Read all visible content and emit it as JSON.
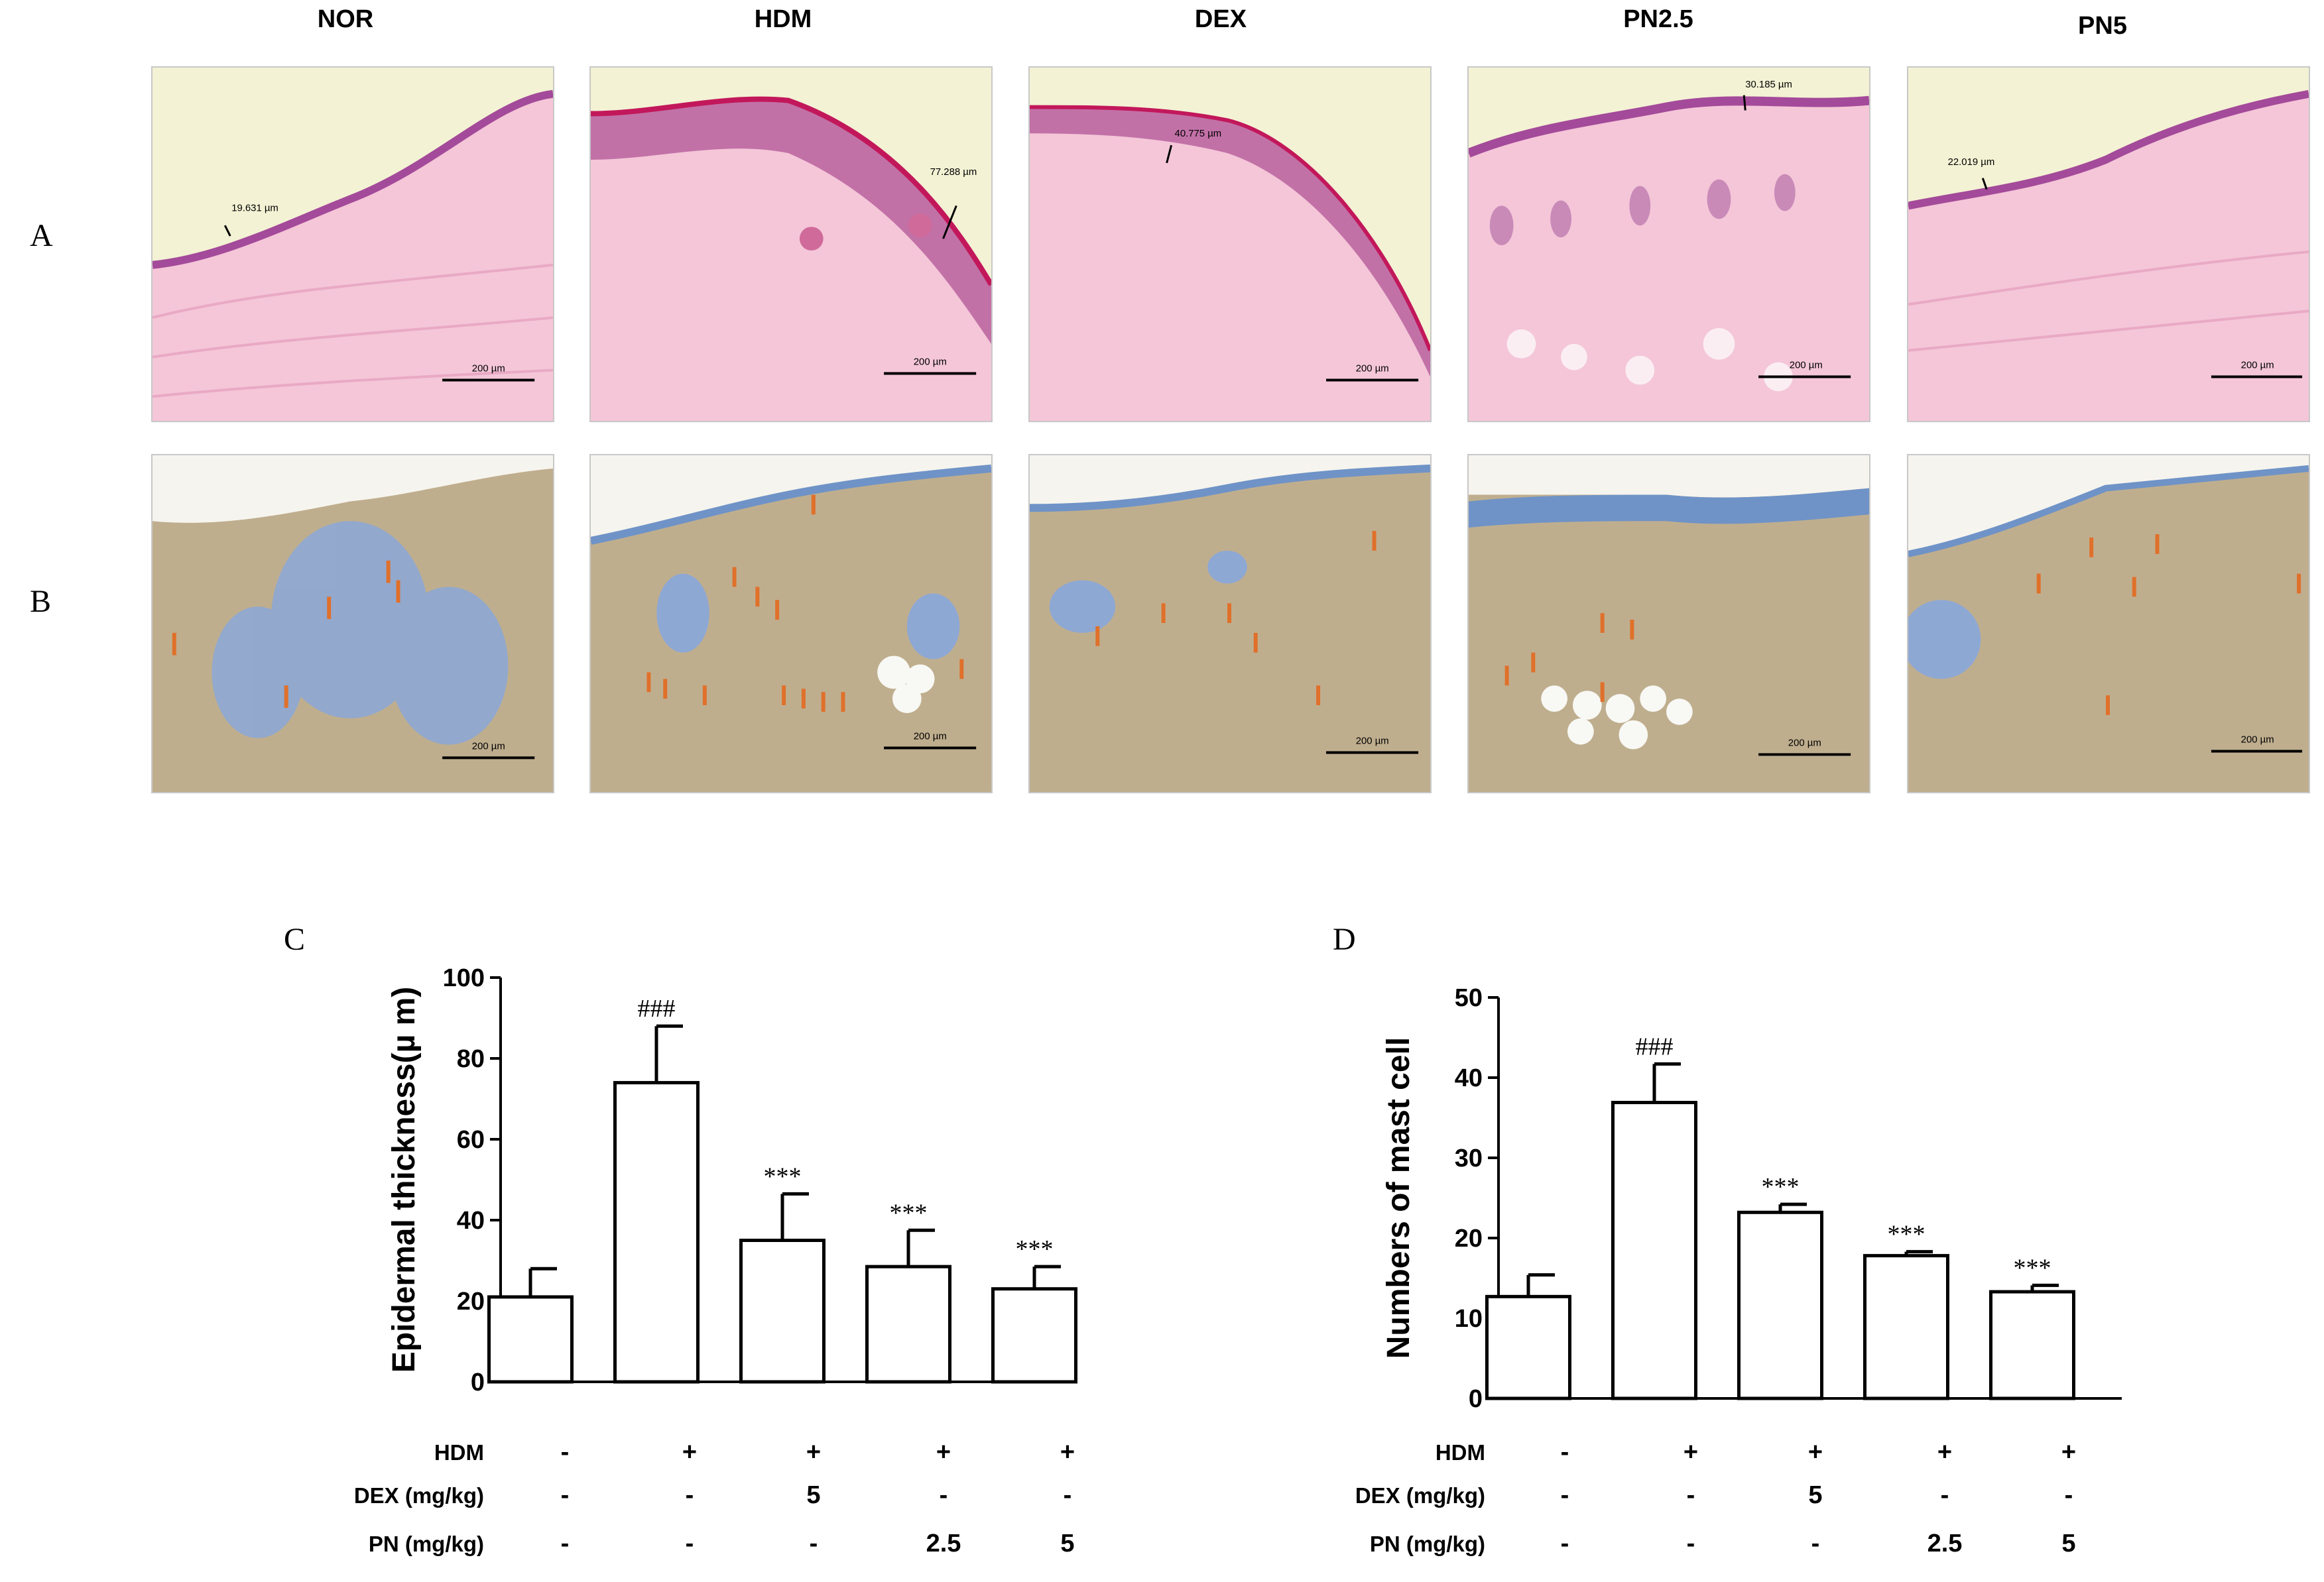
{
  "columns": [
    "NOR",
    "HDM",
    "DEX",
    "PN2.5",
    "PN5"
  ],
  "row_labels": {
    "a": "A",
    "b": "B"
  },
  "he_measurements": [
    "19.631 µm",
    "77.288 µm",
    "40.775 µm",
    "30.185 µm",
    "22.019 µm"
  ],
  "scale_bar_text": "200 µm",
  "colors": {
    "he_bg": "#f4c6d8",
    "he_bg_light": "#f7d9e4",
    "epidermis": "#a44a9a",
    "edge": "#c2185b",
    "bg_top": "#f3f2d4",
    "tb_bg": "#bfae8e",
    "tb_fiber": "#6f5a3e",
    "tb_blue": "#6f93c7",
    "arrow": "#e0702a",
    "bar_fill": "#ffffff",
    "bar_stroke": "#000000"
  },
  "groups": {
    "rows": [
      {
        "label": "HDM",
        "values": [
          "-",
          "+",
          "+",
          "+",
          "+"
        ]
      },
      {
        "label": "DEX (mg/kg)",
        "values": [
          "-",
          "-",
          "5",
          "-",
          "-"
        ]
      },
      {
        "label": "PN (mg/kg)",
        "values": [
          "-",
          "-",
          "-",
          "2.5",
          "5"
        ]
      }
    ]
  },
  "chart_data": [
    {
      "panel": "C",
      "type": "bar",
      "categories": [
        "NOR",
        "HDM",
        "DEX",
        "PN2.5",
        "PN5"
      ],
      "values": [
        21,
        74,
        35,
        28.5,
        23
      ],
      "errors": [
        7,
        14,
        11.5,
        9,
        5.5
      ],
      "annotations": [
        "",
        "###",
        "***",
        "***",
        "***"
      ],
      "ylabel": "Epidermal thickness(µ m)",
      "ylim": [
        0,
        100
      ],
      "yticks": [
        0,
        20,
        40,
        60,
        80,
        100
      ]
    },
    {
      "panel": "D",
      "type": "bar",
      "categories": [
        "NOR",
        "HDM",
        "DEX",
        "PN2.5",
        "PN5"
      ],
      "values": [
        12.7,
        36.9,
        23.2,
        17.8,
        13.3
      ],
      "errors": [
        2.7,
        4.8,
        1.0,
        0.5,
        0.8
      ],
      "annotations": [
        "",
        "###",
        "***",
        "***",
        "***"
      ],
      "ylabel": "Numbers of mast cell",
      "ylim": [
        0,
        50
      ],
      "yticks": [
        0,
        10,
        20,
        30,
        40,
        50
      ]
    }
  ]
}
